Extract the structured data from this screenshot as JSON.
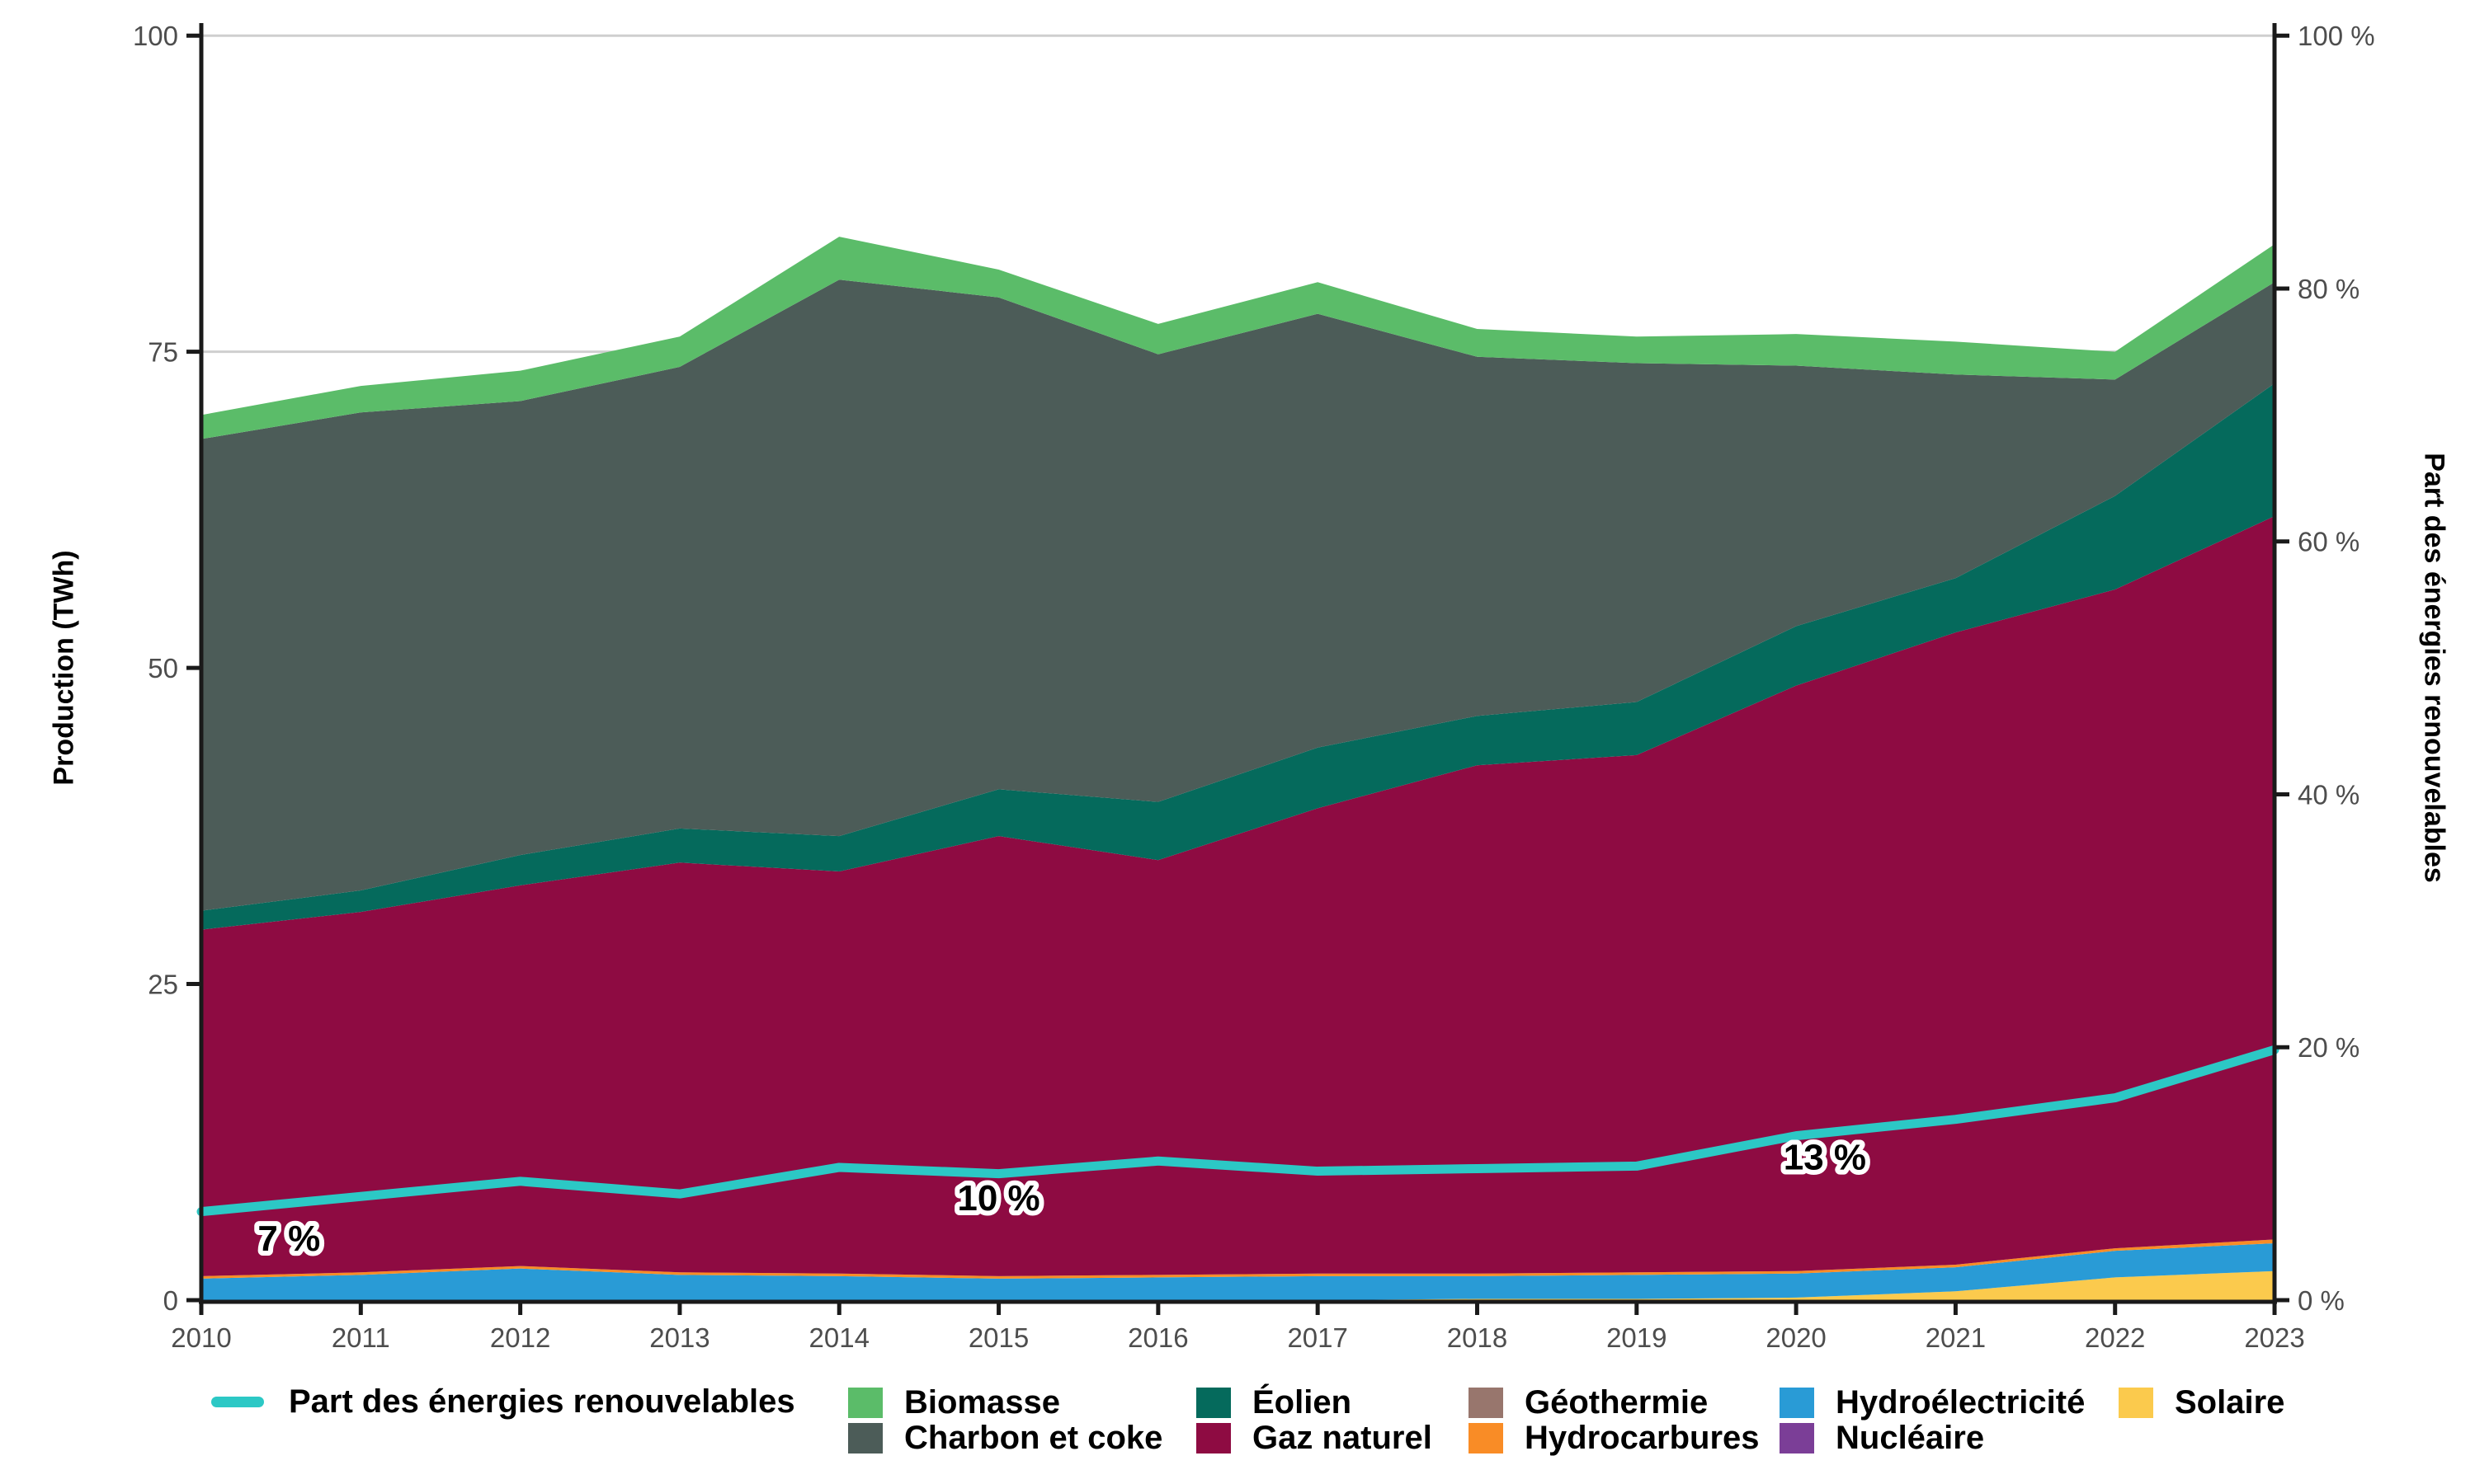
{
  "chart_data": {
    "type": "area",
    "title": "",
    "years": [
      2010,
      2011,
      2012,
      2013,
      2014,
      2015,
      2016,
      2017,
      2018,
      2019,
      2020,
      2021,
      2022,
      2023
    ],
    "stack_order": [
      "solaire",
      "nucleaire",
      "hydroelectricite",
      "hydrocarbures",
      "geothermie",
      "gaz_naturel",
      "eolien",
      "charbon_et_coke",
      "biomasse"
    ],
    "series": [
      {
        "key": "biomasse",
        "label": "Biomasse",
        "color": "#5BBC69",
        "values": [
          1.9,
          2.1,
          2.4,
          2.4,
          3.4,
          2.2,
          2.4,
          2.5,
          2.2,
          2.1,
          2.5,
          2.6,
          2.2,
          3.0
        ]
      },
      {
        "key": "charbon_et_coke",
        "label": "Charbon et coke",
        "color": "#4C5C58",
        "values": [
          37.3,
          37.8,
          35.9,
          36.5,
          44.0,
          38.9,
          35.4,
          34.3,
          28.4,
          26.8,
          20.6,
          16.1,
          9.2,
          8.0
        ]
      },
      {
        "key": "eolien",
        "label": "Éolien",
        "color": "#056A5C",
        "values": [
          1.5,
          1.7,
          2.4,
          2.7,
          2.8,
          3.7,
          4.6,
          4.8,
          3.9,
          4.2,
          4.7,
          4.3,
          7.4,
          10.5
        ]
      },
      {
        "key": "gaz_naturel",
        "label": "Gaz naturel",
        "color": "#8E0B42",
        "values": [
          27.4,
          28.5,
          30.1,
          32.4,
          31.8,
          34.8,
          32.8,
          36.8,
          40.2,
          40.9,
          46.3,
          50.0,
          52.1,
          57.2
        ]
      },
      {
        "key": "geothermie",
        "label": "Géothermie",
        "color": "#98766D",
        "values": [
          0,
          0,
          0,
          0,
          0,
          0,
          0,
          0,
          0,
          0,
          0,
          0,
          0,
          0
        ]
      },
      {
        "key": "hydrocarbures",
        "label": "Hydrocarbures",
        "color": "#F98C26",
        "values": [
          0.2,
          0.2,
          0.2,
          0.2,
          0.2,
          0.2,
          0.2,
          0.2,
          0.2,
          0.2,
          0.2,
          0.2,
          0.2,
          0.3
        ]
      },
      {
        "key": "hydroelectricite",
        "label": "Hydroélectricité",
        "color": "#299BD6",
        "values": [
          1.7,
          2.0,
          2.5,
          2.0,
          1.9,
          1.7,
          1.8,
          1.9,
          1.8,
          1.9,
          1.9,
          1.9,
          2.1,
          2.2
        ]
      },
      {
        "key": "nucleaire",
        "label": "Nucléaire",
        "color": "#7B3E97",
        "values": [
          0,
          0,
          0,
          0,
          0,
          0,
          0,
          0,
          0,
          0,
          0,
          0,
          0,
          0
        ]
      },
      {
        "key": "solaire",
        "label": "Solaire",
        "color": "#FBCA4D",
        "values": [
          0,
          0,
          0,
          0,
          0,
          0,
          0,
          0,
          0.1,
          0.1,
          0.2,
          0.7,
          1.8,
          2.3
        ]
      }
    ],
    "line": {
      "key": "part_renouvelables",
      "label": "Part des énergies renouvelables",
      "color": "#2CC8C5",
      "axis": "right",
      "values": [
        7.0,
        8.2,
        9.4,
        8.4,
        10.5,
        10.0,
        11.0,
        10.2,
        10.4,
        10.6,
        13.0,
        14.3,
        16.0,
        19.8
      ]
    },
    "annotations": [
      {
        "text": "7 %",
        "x": 2010.55,
        "y": 4.9
      },
      {
        "text": "10 %",
        "x": 2015.0,
        "y": 8.1
      },
      {
        "text": "13 %",
        "x": 2020.18,
        "y": 11.3
      }
    ],
    "axes": {
      "left": {
        "title": "Production (TWh)",
        "range": [
          0,
          100
        ],
        "grid_values": [
          25,
          50,
          75,
          100
        ],
        "ticks": [
          {
            "v": 0,
            "label": "0"
          },
          {
            "v": 25,
            "label": "25"
          },
          {
            "v": 50,
            "label": "50"
          },
          {
            "v": 75,
            "label": "75"
          },
          {
            "v": 100,
            "label": "100"
          }
        ]
      },
      "right": {
        "title": "Part des énergies renouvelables",
        "range": [
          0,
          100
        ],
        "ticks": [
          {
            "v": 0,
            "label": "0 %"
          },
          {
            "v": 20,
            "label": "20 %"
          },
          {
            "v": 40,
            "label": "40 %"
          },
          {
            "v": 60,
            "label": "60 %"
          },
          {
            "v": 80,
            "label": "80 %"
          },
          {
            "v": 100,
            "label": "100 %"
          }
        ]
      },
      "x": {
        "ticks": [
          {
            "v": 2010,
            "label": "2010"
          },
          {
            "v": 2011,
            "label": "2011"
          },
          {
            "v": 2012,
            "label": "2012"
          },
          {
            "v": 2013,
            "label": "2013"
          },
          {
            "v": 2014,
            "label": "2014"
          },
          {
            "v": 2015,
            "label": "2015"
          },
          {
            "v": 2016,
            "label": "2016"
          },
          {
            "v": 2017,
            "label": "2017"
          },
          {
            "v": 2018,
            "label": "2018"
          },
          {
            "v": 2019,
            "label": "2019"
          },
          {
            "v": 2020,
            "label": "2020"
          },
          {
            "v": 2021,
            "label": "2021"
          },
          {
            "v": 2022,
            "label": "2022"
          },
          {
            "v": 2023,
            "label": "2023"
          }
        ]
      }
    },
    "layout": {
      "grid_color": "#CFCFCF",
      "axis_color": "#1A1A1A",
      "tick_text_color": "#4d4d4d",
      "legend_position": "bottom"
    }
  },
  "legend": {
    "line_item": {
      "label": "Part des énergies renouvelables"
    }
  }
}
